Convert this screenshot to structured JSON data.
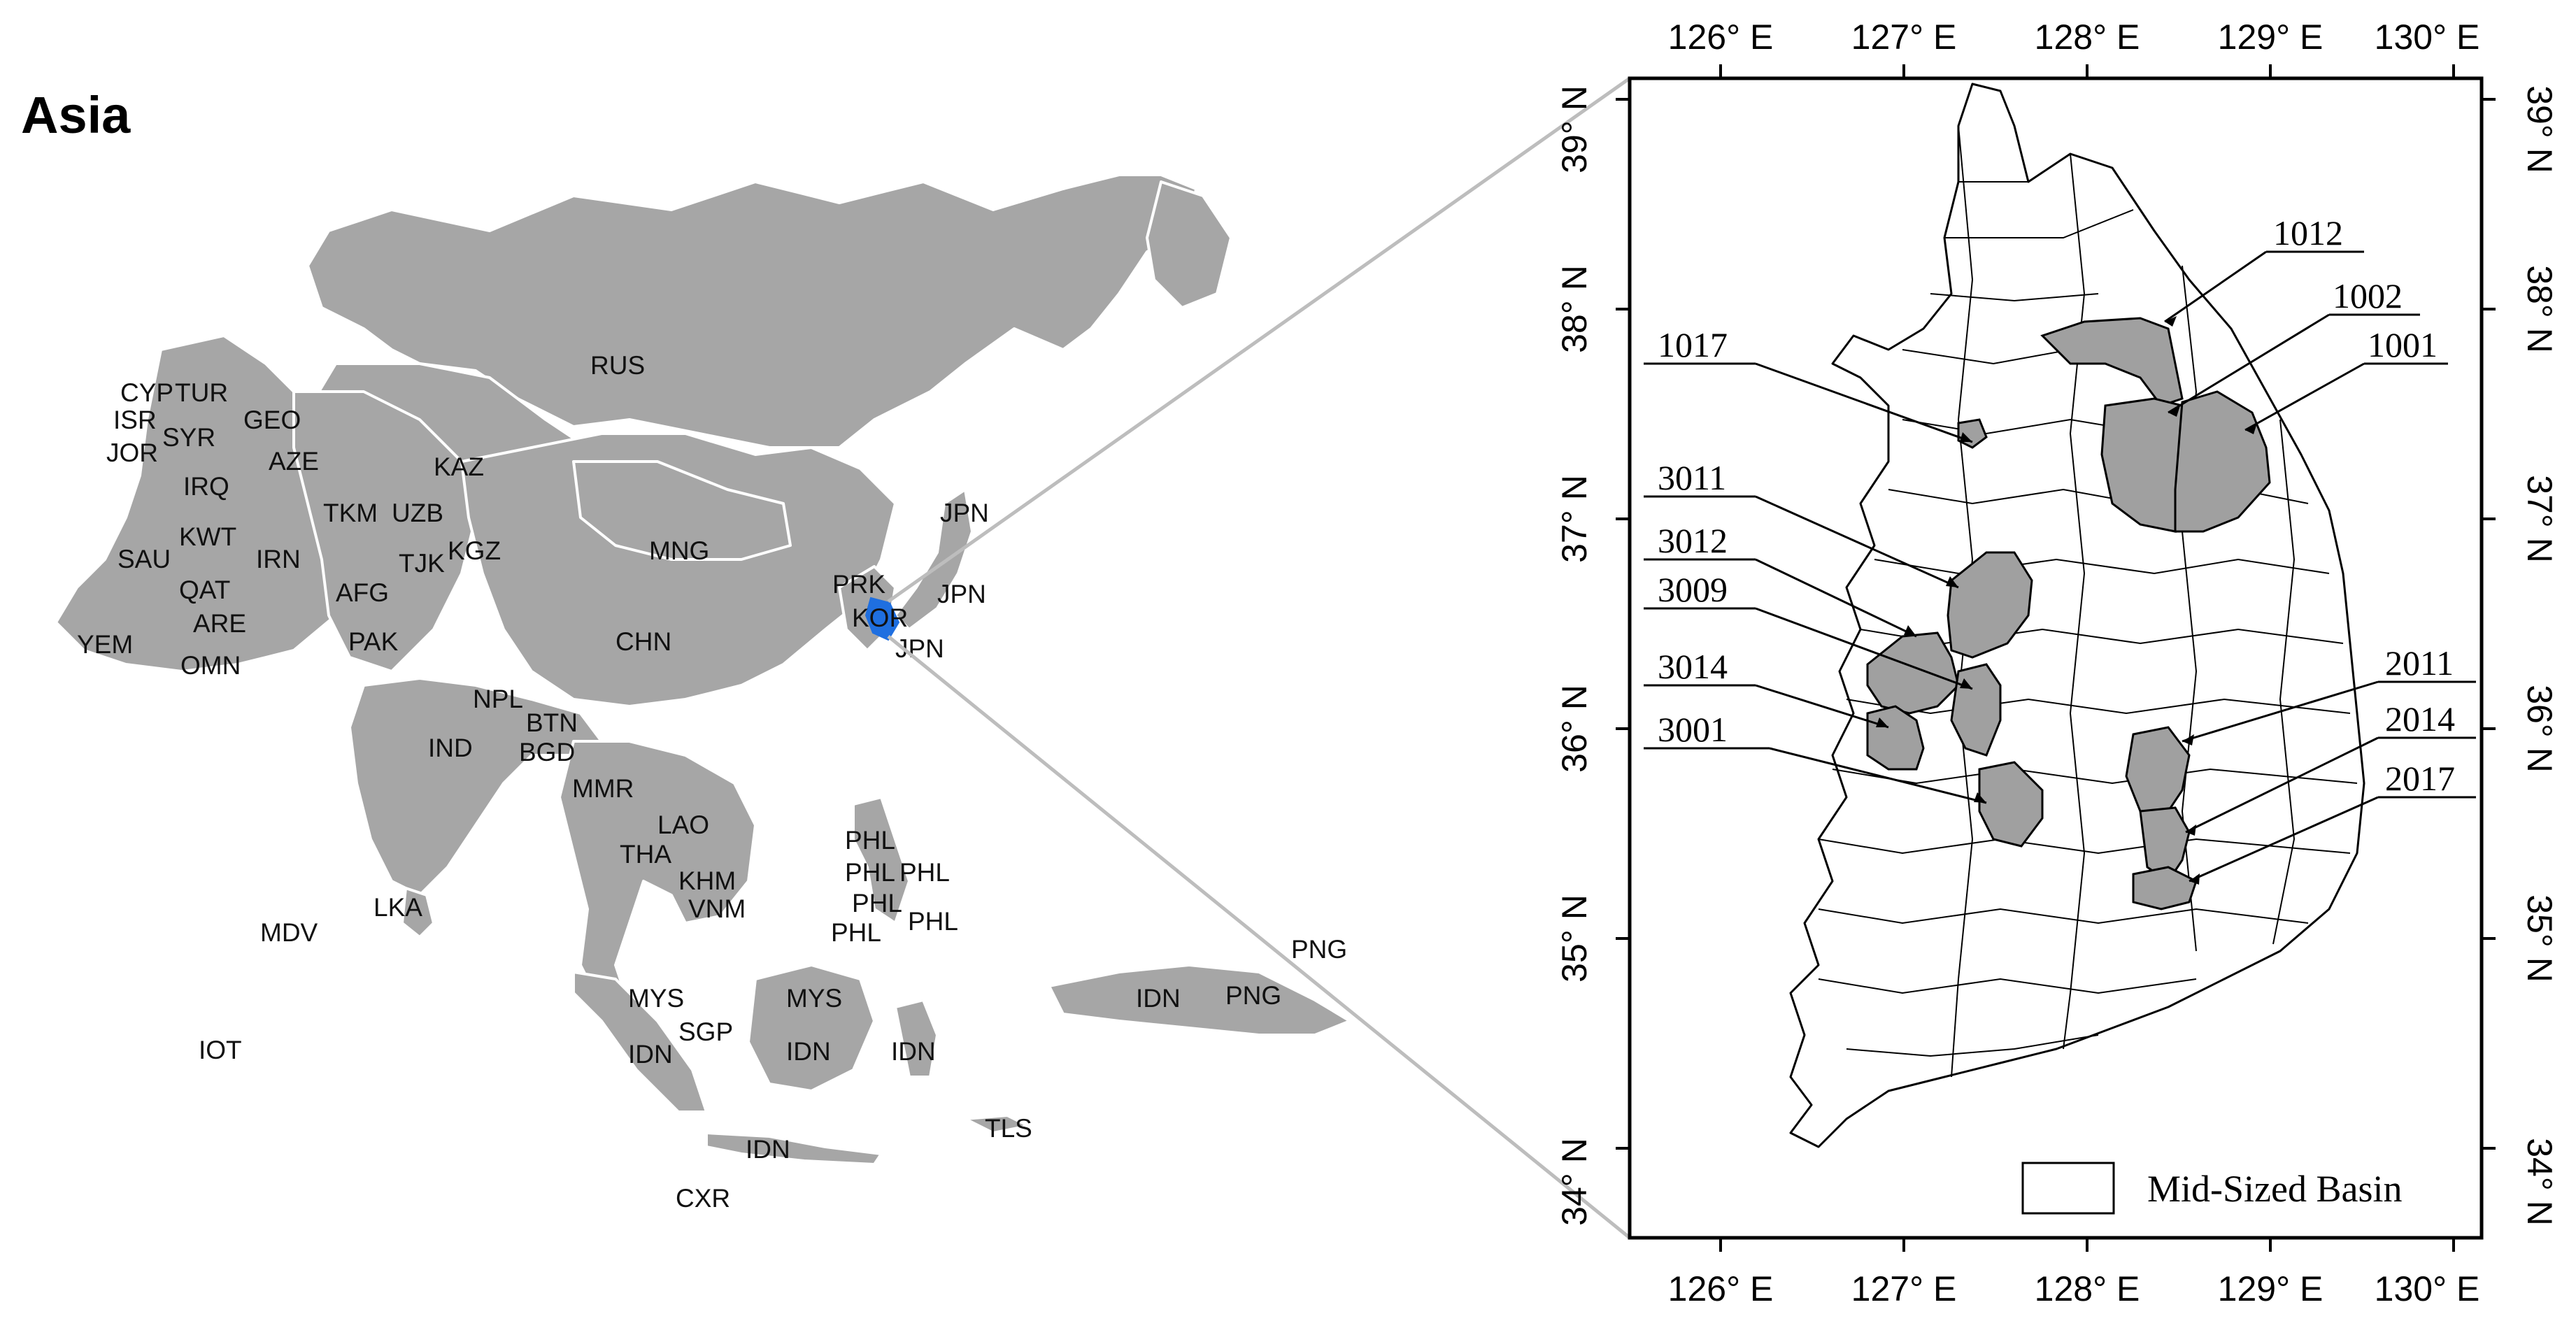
{
  "asia_panel": {
    "title": "Asia",
    "country_labels": [
      {
        "code": "RUS"
      },
      {
        "code": "CYP"
      },
      {
        "code": "TUR"
      },
      {
        "code": "ISR"
      },
      {
        "code": "SYR"
      },
      {
        "code": "GEO"
      },
      {
        "code": "JOR"
      },
      {
        "code": "AZE"
      },
      {
        "code": "KAZ"
      },
      {
        "code": "IRQ"
      },
      {
        "code": "TKM"
      },
      {
        "code": "UZB"
      },
      {
        "code": "KWT"
      },
      {
        "code": "KGZ"
      },
      {
        "code": "SAU"
      },
      {
        "code": "IRN"
      },
      {
        "code": "TJK"
      },
      {
        "code": "MNG"
      },
      {
        "code": "JPN"
      },
      {
        "code": "QAT"
      },
      {
        "code": "AFG"
      },
      {
        "code": "PRK"
      },
      {
        "code": "JPN"
      },
      {
        "code": "ARE"
      },
      {
        "code": "KOR"
      },
      {
        "code": "YEM"
      },
      {
        "code": "PAK"
      },
      {
        "code": "CHN"
      },
      {
        "code": "JPN"
      },
      {
        "code": "OMN"
      },
      {
        "code": "NPL"
      },
      {
        "code": "BTN"
      },
      {
        "code": "IND"
      },
      {
        "code": "BGD"
      },
      {
        "code": "MMR"
      },
      {
        "code": "LAO"
      },
      {
        "code": "THA"
      },
      {
        "code": "PHL"
      },
      {
        "code": "PHL"
      },
      {
        "code": "PHL"
      },
      {
        "code": "KHM"
      },
      {
        "code": "VNM"
      },
      {
        "code": "PHL"
      },
      {
        "code": "LKA"
      },
      {
        "code": "PHL"
      },
      {
        "code": "PHL"
      },
      {
        "code": "MDV"
      },
      {
        "code": "PNG"
      },
      {
        "code": "MYS"
      },
      {
        "code": "MYS"
      },
      {
        "code": "IDN"
      },
      {
        "code": "PNG"
      },
      {
        "code": "SGP"
      },
      {
        "code": "IOT"
      },
      {
        "code": "IDN"
      },
      {
        "code": "IDN"
      },
      {
        "code": "IDN"
      },
      {
        "code": "TLS"
      },
      {
        "code": "IDN"
      },
      {
        "code": "CXR"
      }
    ],
    "highlight_country": "KOR"
  },
  "korea_panel": {
    "lon_ticks": [
      "126° E",
      "127° E",
      "128° E",
      "129° E",
      "130° E"
    ],
    "lat_ticks": [
      "39° N",
      "38° N",
      "37° N",
      "36° N",
      "35° N",
      "34° N"
    ],
    "basins_highlighted": [
      {
        "id": "1012"
      },
      {
        "id": "1002"
      },
      {
        "id": "1001"
      },
      {
        "id": "1017"
      },
      {
        "id": "3011"
      },
      {
        "id": "3012"
      },
      {
        "id": "3009"
      },
      {
        "id": "3014"
      },
      {
        "id": "3001"
      },
      {
        "id": "2011"
      },
      {
        "id": "2014"
      },
      {
        "id": "2017"
      }
    ],
    "legend": {
      "label": "Mid-Sized Basin"
    }
  },
  "colors": {
    "land": "#a6a6a6",
    "highlight": "#1f6fe0",
    "basin_fill": "#a0a0a0",
    "frame": "#000000",
    "connector": "#bdbdbd"
  }
}
